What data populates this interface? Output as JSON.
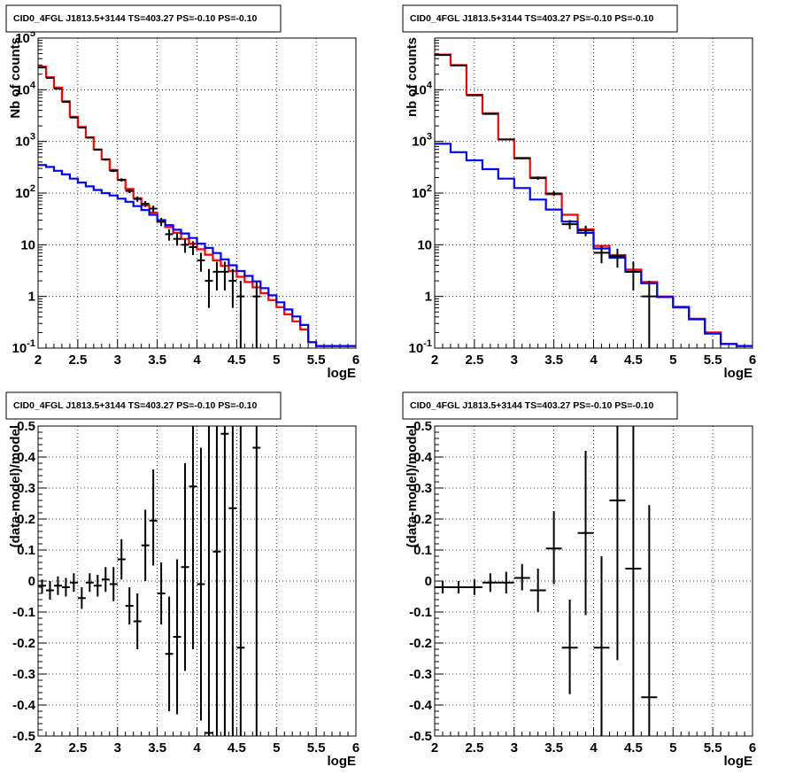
{
  "chart_data": [
    {
      "type": "line",
      "title": "CID0_4FGL J1813.5+3144 TS=403.27 PS=-0.10 PS=-0.10",
      "xlabel": "logE",
      "ylabel": "Nb of counts",
      "xlim": [
        2,
        6
      ],
      "ylim": [
        0.1,
        100000
      ],
      "yscale": "log",
      "grid": true,
      "xticks": [
        "2",
        "2.5",
        "3",
        "3.5",
        "4",
        "4.5",
        "5",
        "5.5",
        "6"
      ],
      "yticks": [
        {
          "v": 0.1,
          "base": "10",
          "sup": "-1",
          "plain": ""
        },
        {
          "v": 1,
          "base": "",
          "sup": "",
          "plain": "1"
        },
        {
          "v": 10,
          "base": "",
          "sup": "",
          "plain": "10"
        },
        {
          "v": 100,
          "base": "10",
          "sup": "2",
          "plain": ""
        },
        {
          "v": 1000,
          "base": "10",
          "sup": "3",
          "plain": ""
        },
        {
          "v": 10000,
          "base": "10",
          "sup": "4",
          "plain": ""
        },
        {
          "v": 100000,
          "base": "10",
          "sup": "5",
          "plain": ""
        }
      ],
      "series": [
        {
          "color": "#ff0000",
          "binwidth": 0.1,
          "x": [
            2.0,
            2.1,
            2.2,
            2.3,
            2.4,
            2.5,
            2.6,
            2.7,
            2.8,
            2.9,
            3.0,
            3.1,
            3.2,
            3.3,
            3.4,
            3.5,
            3.6,
            3.7,
            3.8,
            3.9,
            4.0,
            4.1,
            4.2,
            4.3,
            4.4,
            4.5,
            4.6,
            4.7,
            4.8,
            4.9,
            5.0,
            5.1,
            5.2,
            5.3,
            5.4,
            5.5,
            5.6,
            5.7,
            5.8,
            5.9
          ],
          "y": [
            28000,
            17500,
            11000,
            6000,
            3000,
            1900,
            1200,
            700,
            450,
            280,
            180,
            120,
            80,
            58,
            42,
            28,
            22,
            17,
            13,
            10.5,
            8.2,
            6.4,
            5.0,
            3.9,
            3.1,
            2.4,
            1.9,
            1.5,
            1.15,
            0.85,
            0.62,
            0.45,
            0.33,
            0.23,
            0.13,
            0.11,
            0.11,
            0.11,
            0.11,
            0.11
          ]
        },
        {
          "color": "#0000ff",
          "binwidth": 0.1,
          "x": [
            2.0,
            2.1,
            2.2,
            2.3,
            2.4,
            2.5,
            2.6,
            2.7,
            2.8,
            2.9,
            3.0,
            3.1,
            3.2,
            3.3,
            3.4,
            3.5,
            3.6,
            3.7,
            3.8,
            3.9,
            4.0,
            4.1,
            4.2,
            4.3,
            4.4,
            4.5,
            4.6,
            4.7,
            4.8,
            4.9,
            5.0,
            5.1,
            5.2,
            5.3,
            5.4,
            5.5,
            5.6,
            5.7,
            5.8,
            5.9
          ],
          "y": [
            350,
            320,
            270,
            230,
            190,
            160,
            135,
            115,
            100,
            90,
            78,
            68,
            56,
            47,
            38,
            30,
            24,
            19.5,
            16.5,
            13.5,
            10.5,
            8.7,
            6.9,
            5.2,
            4.0,
            3.1,
            2.5,
            1.95,
            1.45,
            1.05,
            0.77,
            0.56,
            0.41,
            0.28,
            0.13,
            0.11,
            0.11,
            0.11,
            0.11,
            0.11
          ]
        }
      ],
      "points": {
        "color": "#000000",
        "xerr": 0.05,
        "x": [
          2.05,
          2.15,
          2.25,
          2.35,
          2.45,
          2.55,
          2.65,
          2.75,
          2.85,
          2.95,
          3.05,
          3.15,
          3.25,
          3.35,
          3.45,
          3.55,
          3.65,
          3.75,
          3.85,
          3.95,
          4.05,
          4.15,
          4.25,
          4.35,
          4.45,
          4.55,
          4.75
        ],
        "y": [
          27000,
          17000,
          10500,
          5800,
          2900,
          1850,
          1180,
          690,
          445,
          270,
          180,
          110,
          77,
          62,
          50,
          28,
          16,
          13,
          10,
          9,
          5,
          2,
          3,
          3,
          2,
          1,
          1
        ],
        "ylo": [
          26700,
          16700,
          10300,
          5720,
          2850,
          1800,
          1150,
          665,
          425,
          255,
          167,
          100,
          68,
          54,
          43,
          23,
          12,
          9.6,
          7,
          6.3,
          3,
          0.6,
          1.3,
          1.3,
          0.6,
          0.1,
          0.1
        ],
        "yhi": [
          27300,
          17300,
          10700,
          5880,
          2950,
          1900,
          1210,
          715,
          465,
          285,
          193,
          120,
          86,
          70,
          57,
          33,
          20,
          16.4,
          13,
          11.7,
          7,
          3.4,
          4.7,
          4.7,
          3.4,
          2.0,
          2.0
        ]
      }
    },
    {
      "type": "line",
      "title": "CID0_4FGL J1813.5+3144 TS=403.27 PS=-0.10 PS=-0.10",
      "xlabel": "logE",
      "ylabel": "nb of counts",
      "xlim": [
        2,
        6
      ],
      "ylim": [
        0.1,
        100000
      ],
      "yscale": "log",
      "grid": true,
      "xticks": [
        "2",
        "2.5",
        "3",
        "3.5",
        "4",
        "4.5",
        "5",
        "5.5",
        "6"
      ],
      "yticks": [
        {
          "v": 0.1,
          "base": "10",
          "sup": "-1",
          "plain": ""
        },
        {
          "v": 1,
          "base": "",
          "sup": "",
          "plain": "1"
        },
        {
          "v": 10,
          "base": "",
          "sup": "",
          "plain": "10"
        },
        {
          "v": 100,
          "base": "10",
          "sup": "2",
          "plain": ""
        },
        {
          "v": 1000,
          "base": "10",
          "sup": "3",
          "plain": ""
        },
        {
          "v": 10000,
          "base": "10",
          "sup": "4",
          "plain": ""
        }
      ],
      "series": [
        {
          "color": "#ff0000",
          "binwidth": 0.2,
          "x": [
            2.0,
            2.2,
            2.4,
            2.6,
            2.8,
            3.0,
            3.2,
            3.4,
            3.6,
            3.8,
            4.0,
            4.2,
            4.4,
            4.6,
            4.8,
            5.0,
            5.2,
            5.4,
            5.6,
            5.8
          ],
          "y": [
            48000,
            30000,
            8000,
            3500,
            1100,
            480,
            200,
            95,
            38,
            20,
            9.5,
            6.3,
            3.3,
            1.9,
            1.0,
            0.63,
            0.37,
            0.2,
            0.12,
            0.11
          ]
        },
        {
          "color": "#0000ff",
          "binwidth": 0.2,
          "x": [
            2.0,
            2.2,
            2.4,
            2.6,
            2.8,
            3.0,
            3.2,
            3.4,
            3.6,
            3.8,
            4.0,
            4.2,
            4.4,
            4.6,
            4.8,
            5.0,
            5.2,
            5.4,
            5.6,
            5.8
          ],
          "y": [
            900,
            620,
            430,
            290,
            190,
            125,
            75,
            48,
            28,
            17,
            8.5,
            5.6,
            3.0,
            1.8,
            0.97,
            0.61,
            0.36,
            0.19,
            0.12,
            0.11
          ]
        }
      ],
      "points": {
        "color": "#000000",
        "xerr": 0.1,
        "x": [
          2.1,
          2.3,
          2.5,
          2.7,
          2.9,
          3.1,
          3.3,
          3.5,
          3.7,
          3.9,
          4.1,
          4.3,
          4.5,
          4.7
        ],
        "y": [
          47000,
          29500,
          7800,
          3400,
          1090,
          470,
          195,
          98,
          25,
          19,
          7,
          6,
          3,
          1
        ],
        "ylo": [
          46800,
          29300,
          7710,
          3340,
          1057,
          450,
          181,
          88,
          20,
          14.6,
          4.4,
          3.6,
          1.3,
          0.1
        ],
        "yhi": [
          47200,
          29700,
          7890,
          3460,
          1123,
          490,
          209,
          108,
          30,
          23.4,
          9.6,
          8.4,
          4.7,
          2.0
        ]
      }
    },
    {
      "type": "scatter",
      "title": "CID0_4FGL J1813.5+3144 TS=403.27 PS=-0.10 PS=-0.10",
      "xlabel": "logE",
      "ylabel": "(data-model)/model",
      "xlim": [
        2,
        6
      ],
      "ylim": [
        -0.5,
        0.5
      ],
      "yscale": "linear",
      "grid": true,
      "xticks": [
        "2",
        "2.5",
        "3",
        "3.5",
        "4",
        "4.5",
        "5",
        "5.5",
        "6"
      ],
      "yticks": [
        {
          "v": -0.5,
          "plain": "-0.5"
        },
        {
          "v": -0.4,
          "plain": "-0.4"
        },
        {
          "v": -0.3,
          "plain": "-0.3"
        },
        {
          "v": -0.2,
          "plain": "-0.2"
        },
        {
          "v": -0.1,
          "plain": "-0.1"
        },
        {
          "v": 0,
          "plain": "0"
        },
        {
          "v": 0.1,
          "plain": "0.1"
        },
        {
          "v": 0.2,
          "plain": "0.2"
        },
        {
          "v": 0.3,
          "plain": "0.3"
        },
        {
          "v": 0.4,
          "plain": "0.4"
        },
        {
          "v": 0.5,
          "plain": "0.5"
        }
      ],
      "points": {
        "color": "#000000",
        "xerr": 0.05,
        "x": [
          2.05,
          2.15,
          2.25,
          2.35,
          2.45,
          2.55,
          2.65,
          2.75,
          2.85,
          2.95,
          3.05,
          3.15,
          3.25,
          3.35,
          3.45,
          3.55,
          3.65,
          3.75,
          3.85,
          3.95,
          4.05,
          4.15,
          4.25,
          4.35,
          4.45,
          4.55,
          4.75
        ],
        "y": [
          -0.015,
          -0.03,
          -0.015,
          -0.02,
          -0.005,
          -0.055,
          -0.005,
          -0.015,
          0.005,
          -0.01,
          0.07,
          -0.08,
          -0.13,
          0.115,
          0.195,
          -0.04,
          -0.235,
          -0.18,
          0.045,
          0.305,
          -0.01,
          -0.49,
          0.095,
          0.475,
          0.235,
          -0.215,
          0.43
        ],
        "ylo": [
          -0.04,
          -0.06,
          -0.045,
          -0.05,
          -0.035,
          -0.09,
          -0.035,
          -0.05,
          -0.035,
          -0.065,
          0.005,
          -0.14,
          -0.22,
          0.0,
          0.05,
          -0.14,
          -0.42,
          -0.43,
          -0.29,
          -0.22,
          -0.45,
          -0.5,
          -0.5,
          -0.5,
          -0.5,
          -0.5,
          -0.5
        ],
        "yhi": [
          0.005,
          0.0,
          0.015,
          0.01,
          0.025,
          -0.02,
          0.025,
          0.02,
          0.045,
          0.045,
          0.135,
          -0.02,
          -0.04,
          0.23,
          0.36,
          0.06,
          -0.05,
          0.07,
          0.38,
          0.5,
          0.43,
          0.5,
          0.5,
          0.5,
          0.5,
          0.5,
          0.5
        ]
      }
    },
    {
      "type": "scatter",
      "title": "CID0_4FGL J1813.5+3144 TS=403.27 PS=-0.10 PS=-0.10",
      "xlabel": "logE",
      "ylabel": "(data-model)/model",
      "xlim": [
        2,
        6
      ],
      "ylim": [
        -0.5,
        0.5
      ],
      "yscale": "linear",
      "grid": true,
      "xticks": [
        "2",
        "2.5",
        "3",
        "3.5",
        "4",
        "4.5",
        "5",
        "5.5",
        "6"
      ],
      "yticks": [
        {
          "v": -0.5,
          "plain": "-0.5"
        },
        {
          "v": -0.4,
          "plain": "-0.4"
        },
        {
          "v": -0.3,
          "plain": "-0.3"
        },
        {
          "v": -0.2,
          "plain": "-0.2"
        },
        {
          "v": -0.1,
          "plain": "-0.1"
        },
        {
          "v": 0,
          "plain": "0"
        },
        {
          "v": 0.1,
          "plain": "0.1"
        },
        {
          "v": 0.2,
          "plain": "0.2"
        },
        {
          "v": 0.3,
          "plain": "0.3"
        },
        {
          "v": 0.4,
          "plain": "0.4"
        },
        {
          "v": 0.5,
          "plain": "0.5"
        }
      ],
      "points": {
        "color": "#000000",
        "xerr": 0.1,
        "x": [
          2.1,
          2.3,
          2.5,
          2.7,
          2.9,
          3.1,
          3.3,
          3.5,
          3.7,
          3.9,
          4.1,
          4.3,
          4.5,
          4.7
        ],
        "y": [
          -0.02,
          -0.02,
          -0.02,
          -0.005,
          -0.005,
          0.01,
          -0.03,
          0.105,
          -0.215,
          0.155,
          -0.215,
          0.26,
          0.04,
          -0.375
        ],
        "ylo": [
          -0.04,
          -0.04,
          -0.045,
          -0.035,
          -0.04,
          -0.03,
          -0.1,
          -0.01,
          -0.365,
          -0.11,
          -0.5,
          -0.255,
          -0.5,
          -0.5
        ],
        "yhi": [
          0.0,
          0.0,
          0.005,
          0.025,
          0.03,
          0.055,
          0.04,
          0.225,
          -0.06,
          0.42,
          0.08,
          0.5,
          0.5,
          0.245
        ]
      }
    }
  ]
}
